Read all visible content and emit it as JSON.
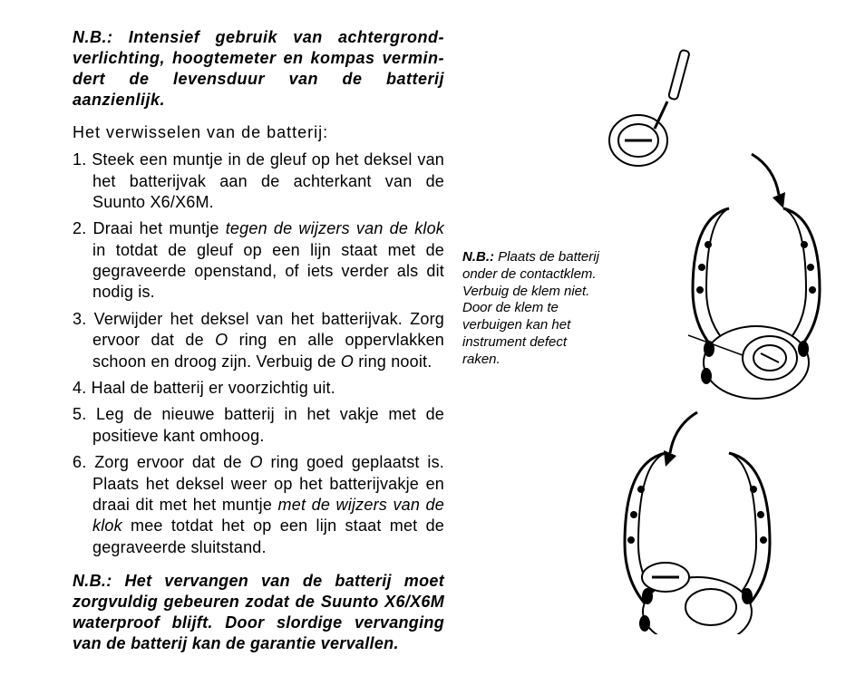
{
  "nb_top": {
    "label": "N.B.:",
    "text": "Intensief gebruik van achtergrond-verlichting, hoogtemeter en kompas vermin-dert de levensduur van de batterij aanzienlijk."
  },
  "heading": "Het verwisselen van de batterij:",
  "steps": [
    "Steek een muntje in de gleuf op het deksel van het batterijvak aan de achterkant van de Suunto X6/X6M.",
    "Draai het muntje <span class=\"italic\">tegen de wijzers van de klok</span> in totdat de gleuf op een lijn staat met de gegraveerde openstand, of iets verder als dit nodig is.",
    "Verwijder het deksel van het batterijvak. Zorg ervoor dat de <span class=\"italic\">O</span> ring en alle oppervlakken schoon en droog zijn. Verbuig de <span class=\"italic\">O</span> ring nooit.",
    "Haal de batterij er voorzichtig uit.",
    "Leg de nieuwe batterij in het vakje met de positieve kant omhoog.",
    "Zorg ervoor dat de <span class=\"italic\">O</span> ring goed geplaatst is. Plaats het deksel weer op het batterijvakje en draai dit met het muntje <span class=\"italic\">met de wijzers van de klok</span> mee totdat het op een lijn staat met de gegraveerde sluitstand."
  ],
  "nb_bottom": {
    "label": "N.B.:",
    "text": "Het vervangen van de batterij moet zorgvuldig gebeuren zodat de Suunto X6/X6M waterproof blijft. Door slordige vervanging van de batterij kan de garantie vervallen."
  },
  "side_note": {
    "label": "N.B.:",
    "text": "Plaats de batterij onder de contactklem. Verbuig de klem niet. Door de klem te verbuigen kan het instrument defect raken."
  },
  "diagram": {
    "type": "illustration",
    "stroke": "#000000",
    "fill": "#ffffff",
    "stroke_width": 2,
    "arrow_fill": "#000000"
  }
}
